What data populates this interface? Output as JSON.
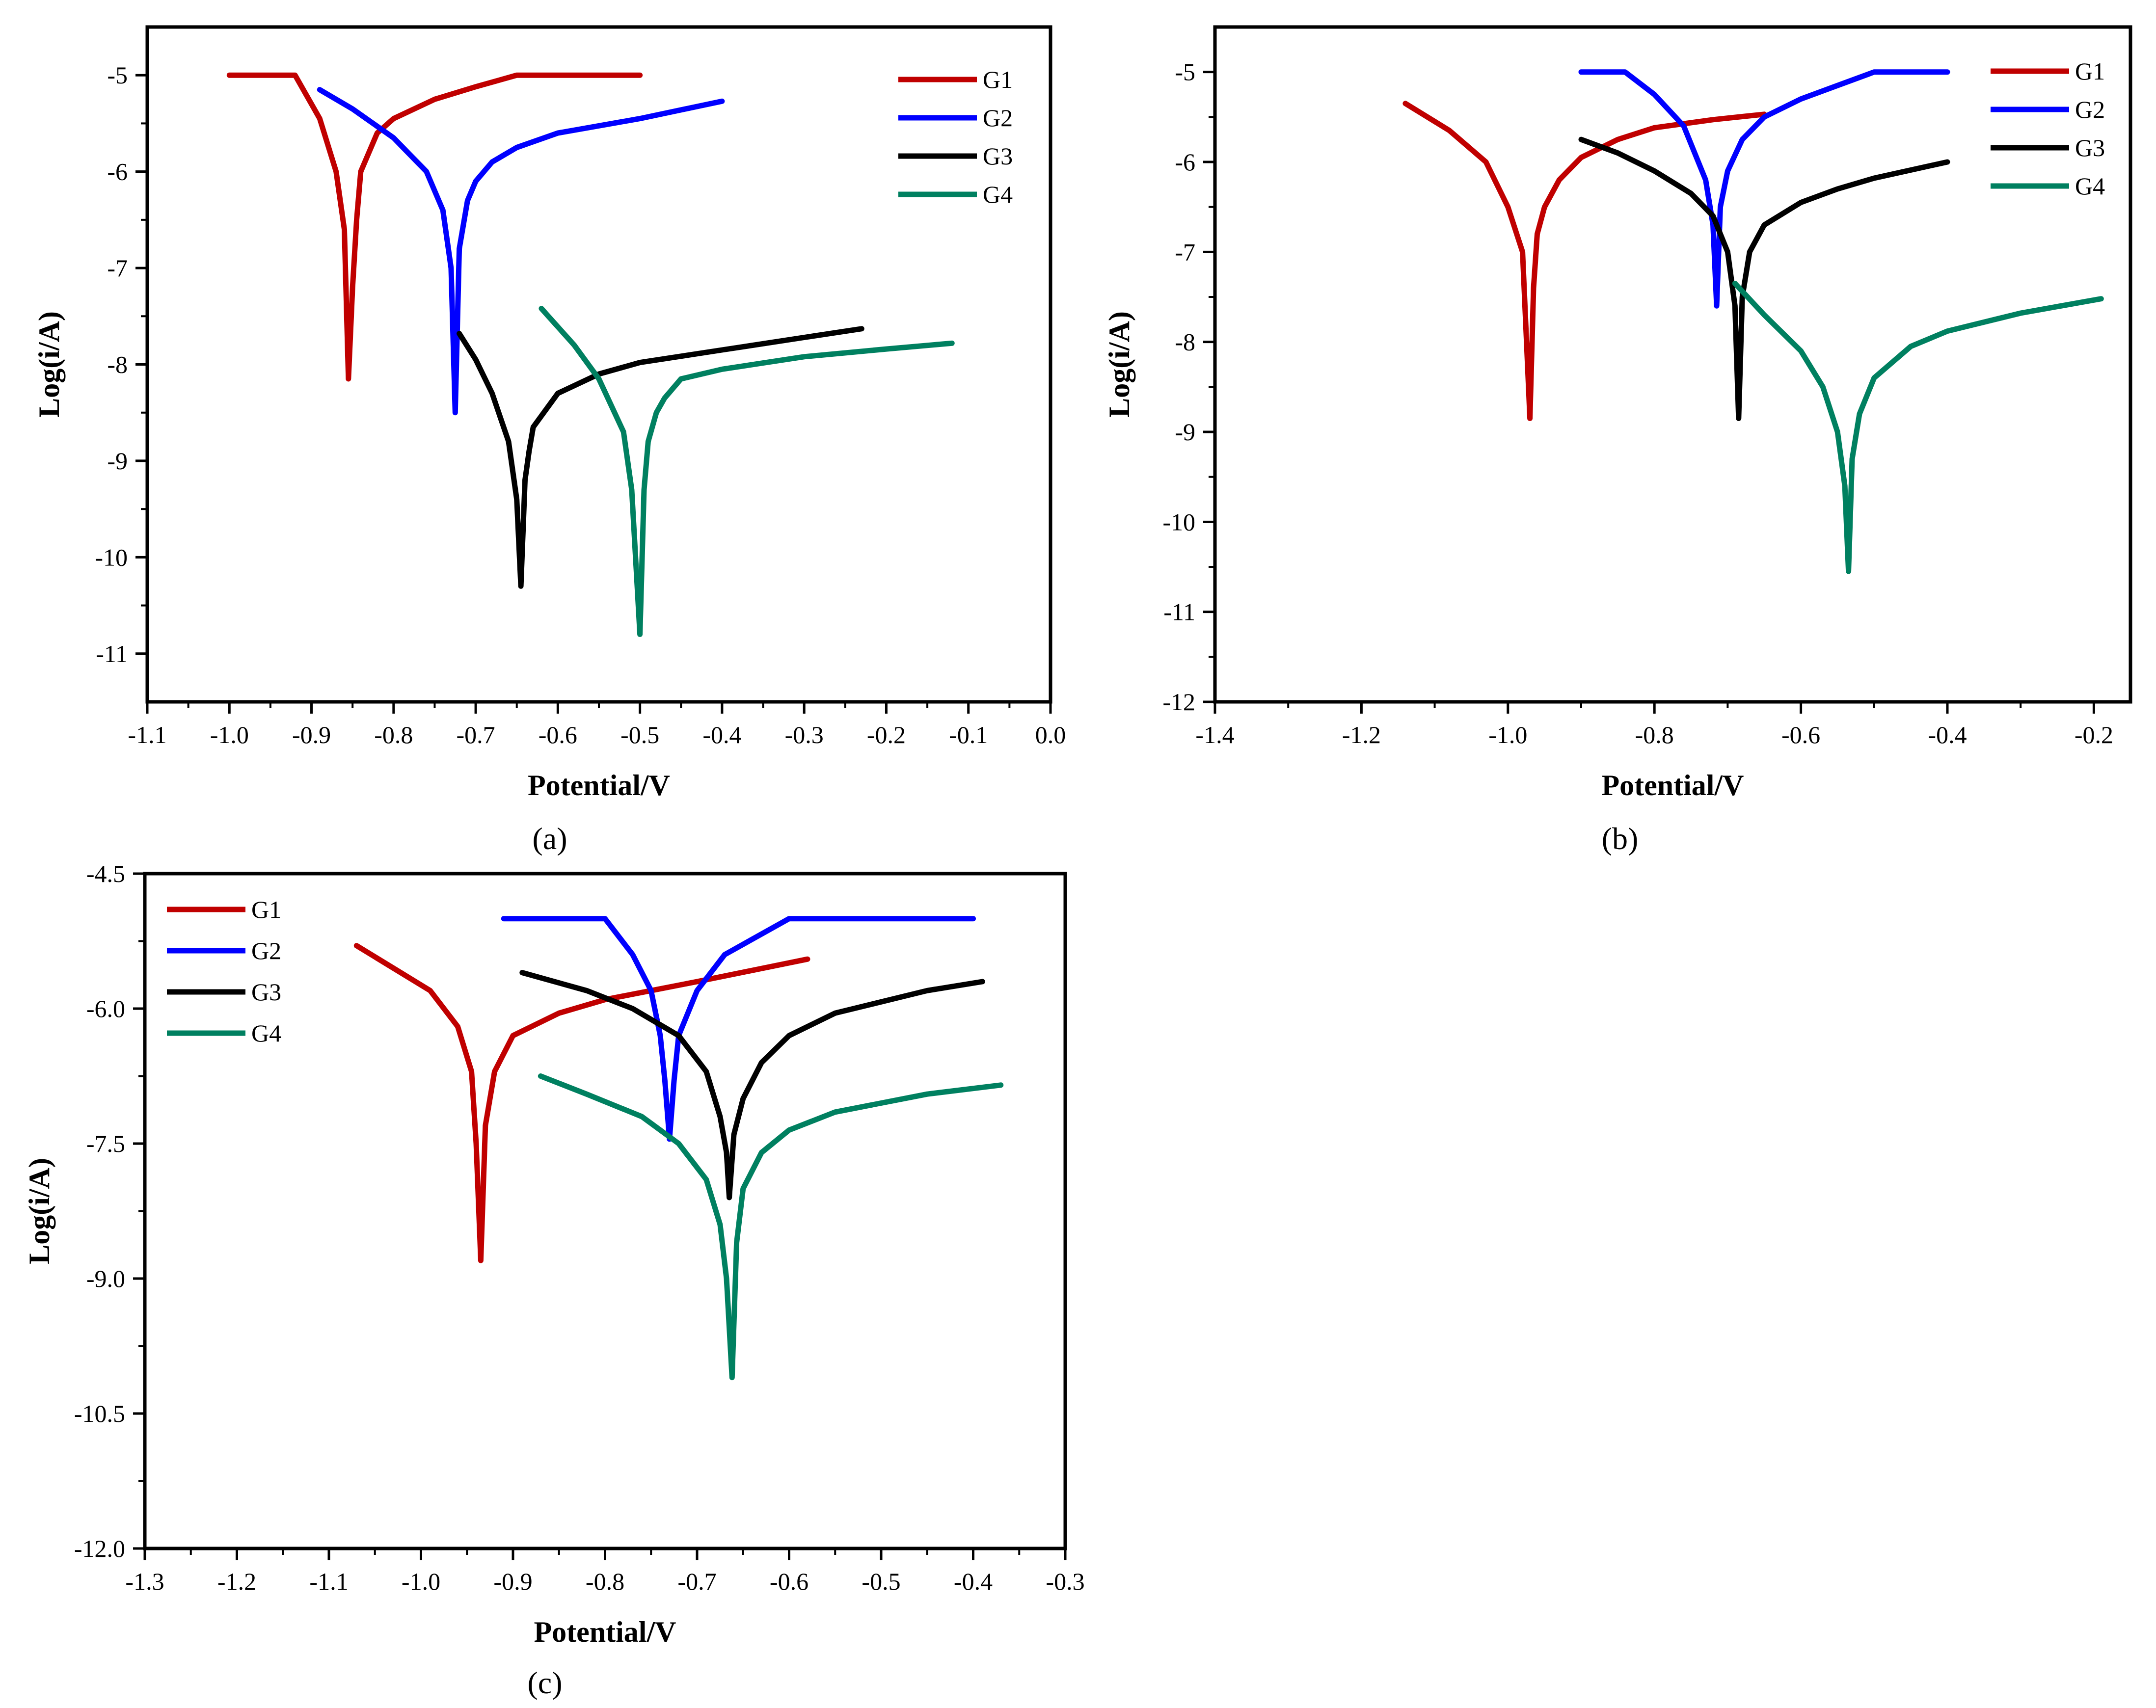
{
  "figure": {
    "panels": [
      {
        "id": "a",
        "caption": "(a)"
      },
      {
        "id": "b",
        "caption": "(b)"
      },
      {
        "id": "c",
        "caption": "(c)"
      }
    ],
    "colors": {
      "G1": "#c00000",
      "G2": "#0000ff",
      "G3": "#000000",
      "G4": "#008060"
    }
  },
  "chart_data": [
    {
      "type": "line",
      "panel": "a",
      "xlabel": "Potential/V",
      "ylabel": "Log(i/A)",
      "xlim": [
        -1.1,
        0.0
      ],
      "ylim": [
        -11.5,
        -4.5
      ],
      "xticks": [
        -1.1,
        -1.0,
        -0.9,
        -0.8,
        -0.7,
        -0.6,
        -0.5,
        -0.4,
        -0.3,
        -0.2,
        -0.1,
        0.0
      ],
      "xtick_labels": [
        "-1.1",
        "-1.0",
        "-0.9",
        "-0.8",
        "-0.7",
        "-0.6",
        "-0.5",
        "-0.4",
        "-0.3",
        "-0.2",
        "-0.1",
        "0.0"
      ],
      "yticks": [
        -11,
        -10,
        -9,
        -8,
        -7,
        -6,
        -5
      ],
      "ytick_labels": [
        "-11",
        "-10",
        "-9",
        "-8",
        "-7",
        "-6",
        "-5"
      ],
      "legend_position": "top-right",
      "series": [
        {
          "name": "G1",
          "color": "#c00000",
          "x": [
            -1.0,
            -0.92,
            -0.89,
            -0.87,
            -0.86,
            -0.855,
            -0.85,
            -0.845,
            -0.84,
            -0.82,
            -0.8,
            -0.75,
            -0.7,
            -0.65,
            -0.6,
            -0.5
          ],
          "y": [
            -5.0,
            -5.0,
            -5.45,
            -6.0,
            -6.6,
            -8.15,
            -7.2,
            -6.5,
            -6.0,
            -5.6,
            -5.45,
            -5.25,
            -5.12,
            -5.0,
            -5.0,
            -5.0
          ]
        },
        {
          "name": "G2",
          "color": "#0000ff",
          "x": [
            -0.89,
            -0.85,
            -0.8,
            -0.76,
            -0.74,
            -0.73,
            -0.725,
            -0.72,
            -0.71,
            -0.7,
            -0.68,
            -0.65,
            -0.6,
            -0.5,
            -0.4
          ],
          "y": [
            -5.15,
            -5.35,
            -5.65,
            -6.0,
            -6.4,
            -7.0,
            -8.5,
            -6.8,
            -6.3,
            -6.1,
            -5.9,
            -5.75,
            -5.6,
            -5.45,
            -5.27
          ]
        },
        {
          "name": "G3",
          "color": "#000000",
          "x": [
            -0.72,
            -0.7,
            -0.68,
            -0.66,
            -0.65,
            -0.645,
            -0.64,
            -0.635,
            -0.63,
            -0.6,
            -0.55,
            -0.5,
            -0.4,
            -0.3,
            -0.23
          ],
          "y": [
            -7.68,
            -7.95,
            -8.3,
            -8.8,
            -9.4,
            -10.3,
            -9.2,
            -8.9,
            -8.65,
            -8.3,
            -8.1,
            -7.98,
            -7.85,
            -7.72,
            -7.63
          ]
        },
        {
          "name": "G4",
          "color": "#008060",
          "x": [
            -0.62,
            -0.58,
            -0.55,
            -0.52,
            -0.51,
            -0.5,
            -0.495,
            -0.49,
            -0.48,
            -0.47,
            -0.45,
            -0.4,
            -0.3,
            -0.2,
            -0.12
          ],
          "y": [
            -7.42,
            -7.8,
            -8.15,
            -8.7,
            -9.3,
            -10.8,
            -9.3,
            -8.8,
            -8.5,
            -8.35,
            -8.15,
            -8.05,
            -7.92,
            -7.84,
            -7.78
          ]
        }
      ]
    },
    {
      "type": "line",
      "panel": "b",
      "xlabel": "Potential/V",
      "ylabel": "Log(i/A)",
      "xlim": [
        -1.4,
        -0.15
      ],
      "ylim": [
        -12,
        -4.5
      ],
      "xticks": [
        -1.4,
        -1.2,
        -1.0,
        -0.8,
        -0.6,
        -0.4,
        -0.2
      ],
      "xtick_labels": [
        "-1.4",
        "-1.2",
        "-1.0",
        "-0.8",
        "-0.6",
        "-0.4",
        "-0.2"
      ],
      "yticks": [
        -12,
        -11,
        -10,
        -9,
        -8,
        -7,
        -6,
        -5
      ],
      "ytick_labels": [
        "-12",
        "-11",
        "-10",
        "-9",
        "-8",
        "-7",
        "-6",
        "-5"
      ],
      "legend_position": "top-right",
      "series": [
        {
          "name": "G1",
          "color": "#c00000",
          "x": [
            -1.14,
            -1.08,
            -1.03,
            -1.0,
            -0.98,
            -0.97,
            -0.965,
            -0.96,
            -0.95,
            -0.93,
            -0.9,
            -0.85,
            -0.8,
            -0.72,
            -0.65
          ],
          "y": [
            -5.35,
            -5.65,
            -6.0,
            -6.5,
            -7.0,
            -8.85,
            -7.4,
            -6.8,
            -6.5,
            -6.2,
            -5.95,
            -5.75,
            -5.62,
            -5.53,
            -5.47
          ]
        },
        {
          "name": "G2",
          "color": "#0000ff",
          "x": [
            -0.9,
            -0.84,
            -0.8,
            -0.76,
            -0.73,
            -0.72,
            -0.715,
            -0.71,
            -0.7,
            -0.68,
            -0.65,
            -0.6,
            -0.55,
            -0.5,
            -0.4
          ],
          "y": [
            -5.0,
            -5.0,
            -5.25,
            -5.6,
            -6.2,
            -6.7,
            -7.6,
            -6.5,
            -6.1,
            -5.75,
            -5.5,
            -5.3,
            -5.15,
            -5.0,
            -5.0
          ]
        },
        {
          "name": "G3",
          "color": "#000000",
          "x": [
            -0.9,
            -0.85,
            -0.8,
            -0.75,
            -0.72,
            -0.7,
            -0.69,
            -0.685,
            -0.68,
            -0.67,
            -0.65,
            -0.6,
            -0.55,
            -0.5,
            -0.4
          ],
          "y": [
            -5.75,
            -5.9,
            -6.1,
            -6.35,
            -6.6,
            -7.0,
            -7.6,
            -8.85,
            -7.5,
            -7.0,
            -6.7,
            -6.45,
            -6.3,
            -6.18,
            -6.0
          ]
        },
        {
          "name": "G4",
          "color": "#008060",
          "x": [
            -0.69,
            -0.65,
            -0.6,
            -0.57,
            -0.55,
            -0.54,
            -0.535,
            -0.53,
            -0.52,
            -0.5,
            -0.45,
            -0.4,
            -0.3,
            -0.19
          ],
          "y": [
            -7.35,
            -7.7,
            -8.1,
            -8.5,
            -9.0,
            -9.6,
            -10.55,
            -9.3,
            -8.8,
            -8.4,
            -8.05,
            -7.88,
            -7.68,
            -7.52
          ]
        }
      ]
    },
    {
      "type": "line",
      "panel": "c",
      "xlabel": "Potential/V",
      "ylabel": "Log(i/A)",
      "xlim": [
        -1.3,
        -0.3
      ],
      "ylim": [
        -12.0,
        -4.5
      ],
      "xticks": [
        -1.3,
        -1.2,
        -1.1,
        -1.0,
        -0.9,
        -0.8,
        -0.7,
        -0.6,
        -0.5,
        -0.4,
        -0.3
      ],
      "xtick_labels": [
        "-1.3",
        "-1.2",
        "-1.1",
        "-1.0",
        "-0.9",
        "-0.8",
        "-0.7",
        "-0.6",
        "-0.5",
        "-0.4",
        "-0.3"
      ],
      "yticks": [
        -12.0,
        -10.5,
        -9.0,
        -7.5,
        -6.0,
        -4.5
      ],
      "ytick_labels": [
        "-12.0",
        "-10.5",
        "-9.0",
        "-7.5",
        "-6.0",
        "-4.5"
      ],
      "legend_position": "top-left",
      "series": [
        {
          "name": "G1",
          "color": "#c00000",
          "x": [
            -1.07,
            -1.03,
            -0.99,
            -0.96,
            -0.945,
            -0.94,
            -0.935,
            -0.93,
            -0.92,
            -0.9,
            -0.85,
            -0.8,
            -0.7,
            -0.58
          ],
          "y": [
            -5.3,
            -5.55,
            -5.8,
            -6.2,
            -6.7,
            -7.5,
            -8.8,
            -7.3,
            -6.7,
            -6.3,
            -6.05,
            -5.9,
            -5.7,
            -5.45
          ]
        },
        {
          "name": "G2",
          "color": "#0000ff",
          "x": [
            -0.91,
            -0.8,
            -0.77,
            -0.75,
            -0.74,
            -0.735,
            -0.73,
            -0.725,
            -0.72,
            -0.7,
            -0.67,
            -0.6,
            -0.5,
            -0.4
          ],
          "y": [
            -5.0,
            -5.0,
            -5.4,
            -5.8,
            -6.3,
            -6.8,
            -7.45,
            -6.8,
            -6.3,
            -5.8,
            -5.4,
            -5.0,
            -5.0,
            -5.0
          ]
        },
        {
          "name": "G3",
          "color": "#000000",
          "x": [
            -0.89,
            -0.82,
            -0.77,
            -0.72,
            -0.69,
            -0.675,
            -0.668,
            -0.665,
            -0.66,
            -0.65,
            -0.63,
            -0.6,
            -0.55,
            -0.45,
            -0.39
          ],
          "y": [
            -5.6,
            -5.8,
            -6.0,
            -6.3,
            -6.7,
            -7.2,
            -7.6,
            -8.1,
            -7.4,
            -7.0,
            -6.6,
            -6.3,
            -6.05,
            -5.8,
            -5.7
          ]
        },
        {
          "name": "G4",
          "color": "#008060",
          "x": [
            -0.87,
            -0.82,
            -0.76,
            -0.72,
            -0.69,
            -0.675,
            -0.668,
            -0.662,
            -0.657,
            -0.65,
            -0.63,
            -0.6,
            -0.55,
            -0.45,
            -0.37
          ],
          "y": [
            -6.75,
            -6.95,
            -7.2,
            -7.5,
            -7.9,
            -8.4,
            -9.0,
            -10.1,
            -8.6,
            -8.0,
            -7.6,
            -7.35,
            -7.15,
            -6.95,
            -6.85
          ]
        }
      ]
    }
  ]
}
